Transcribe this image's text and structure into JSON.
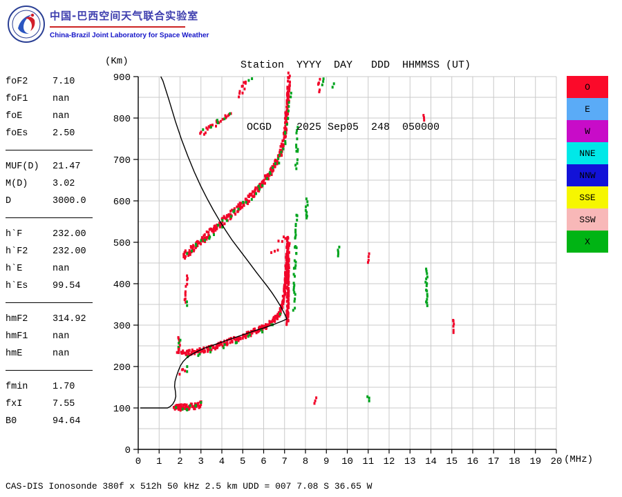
{
  "header": {
    "title_cn": "中国-巴西空间天气联合实验室",
    "title_en": "China-Brazil Joint Laboratory for Space Weather",
    "station_line1": "Station  YYYY  DAY   DDD  HHMMSS (UT)",
    "station_line2": " OCGD    2025 Sep05  248  050000",
    "fields": {
      "station": "OCGD",
      "year": "2025",
      "date": "Sep05",
      "doy": "248",
      "time": "050000",
      "time_system": "(UT)"
    }
  },
  "parameters": {
    "groups": [
      {
        "rows": [
          {
            "label": "foF2",
            "value": "7.10"
          },
          {
            "label": "foF1",
            "value": "nan"
          },
          {
            "label": "foE",
            "value": "nan"
          },
          {
            "label": "foEs",
            "value": "2.50"
          }
        ]
      },
      {
        "rows": [
          {
            "label": "MUF(D)",
            "value": "21.47"
          },
          {
            "label": "M(D)",
            "value": "3.02"
          },
          {
            "label": "D",
            "value": "3000.0"
          }
        ]
      },
      {
        "rows": [
          {
            "label": "h`F",
            "value": "232.00"
          },
          {
            "label": "h`F2",
            "value": "232.00"
          },
          {
            "label": "h`E",
            "value": "nan"
          },
          {
            "label": "h`Es",
            "value": "99.54"
          }
        ]
      },
      {
        "rows": [
          {
            "label": "hmF2",
            "value": "314.92"
          },
          {
            "label": "hmF1",
            "value": "nan"
          },
          {
            "label": "hmE",
            "value": "nan"
          }
        ]
      },
      {
        "rows": [
          {
            "label": "fmin",
            "value": "1.70"
          },
          {
            "label": "fxI",
            "value": "7.55"
          },
          {
            "label": "B0",
            "value": "94.64"
          }
        ]
      }
    ]
  },
  "footer": {
    "text": "CAS-DIS Ionosonde 380f x 512h 50 kHz 2.5 km UDD = 007 7.08 S 36.65 W"
  },
  "chart_data": {
    "type": "scatter",
    "xlabel": "(MHz)",
    "ylabel": "(Km)",
    "xlim": [
      0,
      20
    ],
    "ylim": [
      0,
      900
    ],
    "x_tick_step": 1,
    "y_tick_step": 100,
    "grid": {
      "x_step": 1,
      "y_step": 50,
      "color": "#c9c9c9"
    },
    "colors": {
      "red": "#f1062a",
      "green": "#00a41e",
      "profile": "#000000"
    },
    "legend_position": "right",
    "legend": [
      {
        "label": "O",
        "color": "#fb0a2a"
      },
      {
        "label": "E",
        "color": "#5aabf7"
      },
      {
        "label": "W",
        "color": "#c80cc8"
      },
      {
        "label": "NNE",
        "color": "#00e8e8"
      },
      {
        "label": "NNW",
        "color": "#1212d8"
      },
      {
        "label": "SSE",
        "color": "#f6f600"
      },
      {
        "label": "SSW",
        "color": "#f8b8b8"
      },
      {
        "label": "X",
        "color": "#00b414"
      }
    ],
    "profile": {
      "name": "electron-density-true-height-profile",
      "points": [
        [
          0.1,
          100
        ],
        [
          1.4,
          100
        ],
        [
          1.52,
          103
        ],
        [
          1.65,
          109
        ],
        [
          1.75,
          118
        ],
        [
          1.8,
          128
        ],
        [
          1.78,
          140
        ],
        [
          1.74,
          152
        ],
        [
          1.76,
          164
        ],
        [
          1.83,
          177
        ],
        [
          1.92,
          190
        ],
        [
          2.02,
          202
        ],
        [
          2.15,
          212
        ],
        [
          2.32,
          221
        ],
        [
          2.55,
          229
        ],
        [
          2.85,
          237
        ],
        [
          3.2,
          245
        ],
        [
          3.6,
          252
        ],
        [
          4.0,
          259
        ],
        [
          4.4,
          266
        ],
        [
          4.8,
          273
        ],
        [
          5.2,
          280
        ],
        [
          5.6,
          287
        ],
        [
          6.0,
          293
        ],
        [
          6.4,
          300
        ],
        [
          6.7,
          306
        ],
        [
          6.95,
          311
        ],
        [
          7.1,
          314.9
        ],
        [
          7.04,
          323
        ],
        [
          6.93,
          334
        ],
        [
          6.78,
          348
        ],
        [
          6.6,
          363
        ],
        [
          6.4,
          378
        ],
        [
          6.17,
          394
        ],
        [
          5.92,
          410
        ],
        [
          5.66,
          427
        ],
        [
          5.38,
          446
        ],
        [
          5.08,
          466
        ],
        [
          4.78,
          486
        ],
        [
          4.48,
          506
        ],
        [
          4.18,
          529
        ],
        [
          3.88,
          553
        ],
        [
          3.58,
          579
        ],
        [
          3.28,
          607
        ],
        [
          2.98,
          637
        ],
        [
          2.68,
          670
        ],
        [
          2.38,
          707
        ],
        [
          2.08,
          747
        ],
        [
          1.78,
          792
        ],
        [
          1.48,
          842
        ],
        [
          1.18,
          890
        ],
        [
          1.08,
          900
        ]
      ]
    },
    "traces": [
      {
        "name": "es-trace-o",
        "color": "red",
        "points": [
          [
            1.7,
            102
          ],
          [
            2.0,
            101
          ],
          [
            2.35,
            102
          ],
          [
            2.7,
            105
          ],
          [
            3.0,
            108
          ]
        ],
        "spread": 7,
        "step": 2,
        "n": 3
      },
      {
        "name": "es-trace-x",
        "color": "green",
        "points": [
          [
            1.85,
            97
          ],
          [
            2.3,
            100
          ],
          [
            2.75,
            105
          ],
          [
            3.05,
            109
          ]
        ],
        "spread": 5,
        "step": 9,
        "n": 1
      },
      {
        "name": "f-trace-leading-spread",
        "color": "red",
        "points": [
          [
            1.93,
            232
          ],
          [
            1.97,
            270
          ]
        ],
        "spread": 6,
        "step": 2.5,
        "n": 1
      },
      {
        "name": "f-trace-leading-x",
        "color": "green",
        "points": [
          [
            1.96,
            250
          ],
          [
            1.98,
            266
          ]
        ],
        "spread": 5,
        "step": 6,
        "n": 1
      },
      {
        "name": "f-trace-o",
        "color": "red",
        "points": [
          [
            1.9,
            237
          ],
          [
            2.3,
            233
          ],
          [
            2.8,
            236
          ],
          [
            3.3,
            242
          ],
          [
            3.8,
            250
          ],
          [
            4.3,
            259
          ],
          [
            4.8,
            268
          ],
          [
            5.3,
            278
          ],
          [
            5.8,
            290
          ],
          [
            6.2,
            300
          ],
          [
            6.5,
            311
          ],
          [
            6.75,
            326
          ],
          [
            6.9,
            347
          ],
          [
            7.0,
            378
          ],
          [
            7.07,
            425
          ],
          [
            7.12,
            472
          ],
          [
            7.16,
            508
          ]
        ],
        "spread": 6,
        "step": 2,
        "n": 2
      },
      {
        "name": "f-cusp-o",
        "color": "red",
        "points": [
          [
            7.14,
            305
          ],
          [
            7.18,
            495
          ]
        ],
        "spread": 4,
        "step": 2,
        "n": 2
      },
      {
        "name": "f-trace-x-specks",
        "color": "green",
        "points": [
          [
            2.35,
            228
          ],
          [
            2.9,
            231
          ],
          [
            3.5,
            240
          ],
          [
            4.1,
            250
          ],
          [
            4.7,
            262
          ],
          [
            5.3,
            274
          ],
          [
            5.9,
            288
          ],
          [
            6.4,
            303
          ],
          [
            6.8,
            330
          ]
        ],
        "spread": 5,
        "step": 16,
        "n": 1
      },
      {
        "name": "f-cusp-x",
        "color": "green",
        "points": [
          [
            7.45,
            340
          ],
          [
            7.5,
            430
          ],
          [
            7.54,
            520
          ],
          [
            7.56,
            565
          ]
        ],
        "spread": 8,
        "step": 4.5,
        "n": 1
      },
      {
        "name": "spread-f-scatter",
        "color": "red",
        "points": [
          [
            6.35,
            478
          ],
          [
            6.7,
            494
          ],
          [
            7.0,
            506
          ],
          [
            7.25,
            498
          ]
        ],
        "spread": 14,
        "step": 7,
        "n": 1
      },
      {
        "name": "hop2-trace-o",
        "color": "red",
        "points": [
          [
            2.15,
            463
          ],
          [
            2.45,
            478
          ],
          [
            2.8,
            494
          ],
          [
            3.2,
            512
          ],
          [
            3.6,
            530
          ],
          [
            4.0,
            548
          ],
          [
            4.4,
            565
          ],
          [
            4.8,
            583
          ],
          [
            5.2,
            602
          ],
          [
            5.6,
            624
          ],
          [
            6.0,
            647
          ],
          [
            6.35,
            670
          ],
          [
            6.6,
            692
          ],
          [
            6.8,
            714
          ],
          [
            6.95,
            742
          ]
        ],
        "spread": 9,
        "step": 2,
        "n": 2
      },
      {
        "name": "hop2-cusp-o",
        "color": "red",
        "points": [
          [
            7.0,
            752
          ],
          [
            7.08,
            800
          ],
          [
            7.16,
            850
          ],
          [
            7.22,
            893
          ]
        ],
        "spread": 17,
        "step": 2,
        "n": 2
      },
      {
        "name": "hop2-trace-x",
        "color": "green",
        "points": [
          [
            2.3,
            470
          ],
          [
            2.8,
            490
          ],
          [
            3.4,
            515
          ],
          [
            4.0,
            545
          ],
          [
            4.6,
            572
          ],
          [
            5.2,
            600
          ],
          [
            5.8,
            632
          ],
          [
            6.3,
            665
          ],
          [
            6.7,
            700
          ],
          [
            7.0,
            745
          ],
          [
            7.15,
            800
          ],
          [
            7.3,
            865
          ]
        ],
        "spread": 9,
        "step": 8,
        "n": 1
      },
      {
        "name": "hop2-cusp-x",
        "color": "green",
        "points": [
          [
            7.55,
            675
          ],
          [
            7.6,
            728
          ],
          [
            7.63,
            772
          ]
        ],
        "spread": 10,
        "step": 5,
        "n": 1
      },
      {
        "name": "hop3-low-o",
        "color": "red",
        "points": [
          [
            2.95,
            760
          ],
          [
            3.35,
            773
          ],
          [
            3.75,
            788
          ],
          [
            4.15,
            802
          ],
          [
            4.45,
            815
          ]
        ],
        "spread": 7,
        "step": 3,
        "n": 1
      },
      {
        "name": "hop3-low-x",
        "color": "green",
        "points": [
          [
            3.1,
            766
          ],
          [
            3.8,
            790
          ],
          [
            4.4,
            810
          ]
        ],
        "spread": 6,
        "step": 11,
        "n": 1
      },
      {
        "name": "hop3-high-o",
        "color": "red",
        "points": [
          [
            4.8,
            856
          ],
          [
            5.0,
            872
          ],
          [
            5.18,
            890
          ]
        ],
        "spread": 8,
        "step": 3,
        "n": 1
      },
      {
        "name": "hop3-high-x",
        "color": "green",
        "points": [
          [
            5.3,
            890
          ],
          [
            5.42,
            897
          ]
        ],
        "spread": 4,
        "step": 4,
        "n": 1
      },
      {
        "name": "echo-top-8-6-o",
        "color": "red",
        "points": [
          [
            8.62,
            866
          ],
          [
            8.68,
            893
          ]
        ],
        "spread": 6,
        "step": 3.5,
        "n": 1
      },
      {
        "name": "echo-top-8-9-x",
        "color": "green",
        "points": [
          [
            8.85,
            878
          ],
          [
            8.88,
            892
          ]
        ],
        "spread": 4,
        "step": 4,
        "n": 1
      },
      {
        "name": "echo-top-9-3-x",
        "color": "green",
        "points": [
          [
            9.3,
            876
          ],
          [
            9.32,
            884
          ]
        ],
        "spread": 3,
        "step": 4,
        "n": 1
      },
      {
        "name": "echo-8-0-x-dash",
        "color": "green",
        "points": [
          [
            8.05,
            556
          ],
          [
            8.06,
            604
          ]
        ],
        "spread": 3,
        "step": 3.5,
        "n": 1
      },
      {
        "name": "echo-9-6-x-dash",
        "color": "green",
        "points": [
          [
            9.55,
            466
          ],
          [
            9.57,
            490
          ]
        ],
        "spread": 3,
        "step": 3.5,
        "n": 1
      },
      {
        "name": "echo-11-0-o-dash",
        "color": "red",
        "points": [
          [
            11.0,
            450
          ],
          [
            11.0,
            470
          ]
        ],
        "spread": 3,
        "step": 3.5,
        "n": 1
      },
      {
        "name": "echo-11-0-x-dot",
        "color": "green",
        "points": [
          [
            11.0,
            116
          ],
          [
            11.0,
            126
          ]
        ],
        "spread": 3,
        "step": 4,
        "n": 1
      },
      {
        "name": "echo-8-5-o-dot",
        "color": "red",
        "points": [
          [
            8.45,
            113
          ],
          [
            8.5,
            125
          ]
        ],
        "spread": 3,
        "step": 4,
        "n": 1
      },
      {
        "name": "echo-13-8-x-dash",
        "color": "green",
        "points": [
          [
            13.78,
            346
          ],
          [
            13.8,
            434
          ]
        ],
        "spread": 3,
        "step": 3.5,
        "n": 1
      },
      {
        "name": "echo-13-7-o-dot",
        "color": "red",
        "points": [
          [
            13.65,
            794
          ],
          [
            13.66,
            807
          ]
        ],
        "spread": 3,
        "step": 4,
        "n": 1
      },
      {
        "name": "echo-15-1-o-dash",
        "color": "red",
        "points": [
          [
            15.08,
            284
          ],
          [
            15.1,
            313
          ]
        ],
        "spread": 3,
        "step": 3.5,
        "n": 1
      },
      {
        "name": "echo-2-3-o-dash-a",
        "color": "red",
        "points": [
          [
            2.26,
            355
          ],
          [
            2.28,
            381
          ]
        ],
        "spread": 4,
        "step": 3,
        "n": 1
      },
      {
        "name": "echo-2-3-o-dash-b",
        "color": "red",
        "points": [
          [
            2.3,
            397
          ],
          [
            2.33,
            417
          ]
        ],
        "spread": 4,
        "step": 3,
        "n": 1
      },
      {
        "name": "echo-2-3-x-dot",
        "color": "green",
        "points": [
          [
            2.33,
            349
          ],
          [
            2.34,
            355
          ]
        ],
        "spread": 3,
        "step": 4,
        "n": 1
      },
      {
        "name": "es2-hop-o",
        "color": "red",
        "points": [
          [
            2.02,
            186
          ],
          [
            2.25,
            194
          ]
        ],
        "spread": 5,
        "step": 3,
        "n": 1
      },
      {
        "name": "es2-hop-x",
        "color": "green",
        "points": [
          [
            2.3,
            189
          ],
          [
            2.33,
            197
          ]
        ],
        "spread": 4,
        "step": 4,
        "n": 1
      }
    ]
  }
}
